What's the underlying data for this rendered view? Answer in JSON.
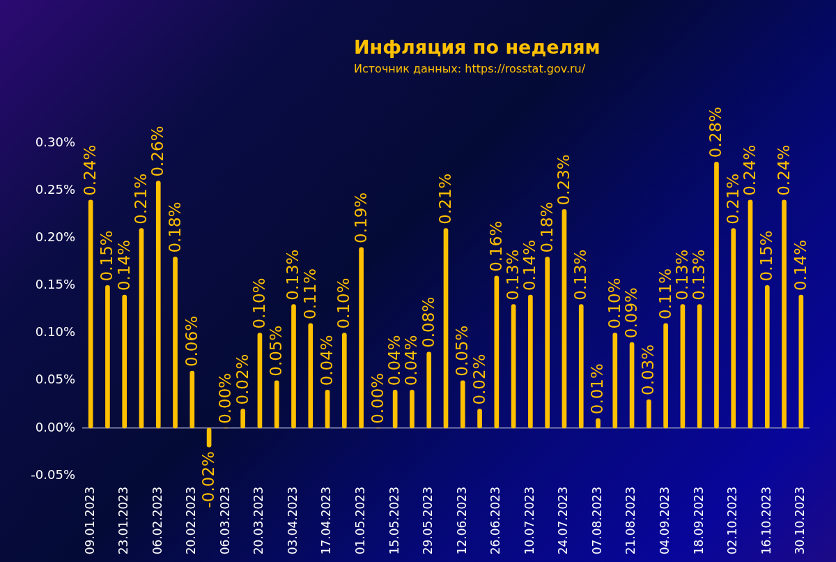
{
  "chart_data": {
    "type": "bar",
    "title": "Инфляция по неделям",
    "annotations": [
      "Источник данных: https://rosstat.gov.ru/"
    ],
    "categories": [
      "09.01.2023",
      null,
      "23.01.2023",
      null,
      "06.02.2023",
      null,
      "20.02.2023",
      null,
      "06.03.2023",
      null,
      "20.03.2023",
      null,
      "03.04.2023",
      null,
      "17.04.2023",
      null,
      "01.05.2023",
      null,
      "15.05.2023",
      null,
      "29.05.2023",
      null,
      "12.06.2023",
      null,
      "26.06.2023",
      null,
      "10.07.2023",
      null,
      "24.07.2023",
      null,
      "07.08.2023",
      null,
      "21.08.2023",
      null,
      "04.09.2023",
      null,
      "18.09.2023",
      null,
      "02.10.2023",
      null,
      "16.10.2023",
      null,
      "30.10.2023"
    ],
    "values": [
      0.24,
      0.15,
      0.14,
      0.21,
      0.26,
      0.18,
      0.06,
      -0.02,
      0.0,
      0.02,
      0.1,
      0.05,
      0.13,
      0.11,
      0.04,
      0.1,
      0.19,
      0.0,
      0.04,
      0.04,
      0.08,
      0.21,
      0.05,
      0.02,
      0.16,
      0.13,
      0.14,
      0.18,
      0.23,
      0.13,
      0.01,
      0.1,
      0.09,
      0.03,
      0.11,
      0.13,
      0.13,
      0.28,
      0.21,
      0.24,
      0.15,
      0.24,
      0.14
    ],
    "value_labels": [
      "0.24%",
      "0.15%",
      "0.14%",
      "0.21%",
      "0.26%",
      "0.18%",
      "0.06%",
      "-0.02%",
      "0.00%",
      "0.02%",
      "0.10%",
      "0.05%",
      "0.13%",
      "0.11%",
      "0.04%",
      "0.10%",
      "0.19%",
      "0.00%",
      "0.04%",
      "0.04%",
      "0.08%",
      "0.21%",
      "0.05%",
      "0.02%",
      "0.16%",
      "0.13%",
      "0.14%",
      "0.18%",
      "0.23%",
      "0.13%",
      "0.01%",
      "0.10%",
      "0.09%",
      "0.03%",
      "0.11%",
      "0.13%",
      "0.13%",
      "0.28%",
      "0.21%",
      "0.24%",
      "0.15%",
      "0.24%",
      "0.14%"
    ],
    "color": "#ffc000",
    "ylim": [
      -0.05,
      0.3
    ],
    "yticks": [
      {
        "value": -0.05,
        "label": "-0.05%"
      },
      {
        "value": 0,
        "label": "0.00%"
      },
      {
        "value": 0.05,
        "label": "0.05%"
      },
      {
        "value": 0.1,
        "label": "0.10%"
      },
      {
        "value": 0.15,
        "label": "0.15%"
      },
      {
        "value": 0.2,
        "label": "0.20%"
      },
      {
        "value": 0.25,
        "label": "0.25%"
      },
      {
        "value": 0.3,
        "label": "0.30%"
      }
    ],
    "ref_lines": [
      {
        "axis": "y",
        "value": 0,
        "color": "#8a8db4"
      }
    ]
  }
}
